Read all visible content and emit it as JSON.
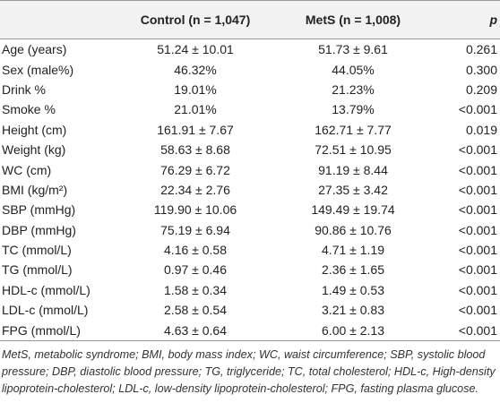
{
  "table": {
    "header": {
      "control": "Control (n = 1,047)",
      "mets": "MetS (n = 1,008)",
      "p": "p"
    },
    "rows": [
      [
        "Age (years)",
        "51.24 ± 10.01",
        "51.73 ± 9.61",
        "0.261"
      ],
      [
        "Sex (male%)",
        "46.32%",
        "44.05%",
        "0.300"
      ],
      [
        "Drink %",
        "19.01%",
        "21.23%",
        "0.209"
      ],
      [
        "Smoke %",
        "21.01%",
        "13.79%",
        "<0.001"
      ],
      [
        "Height (cm)",
        "161.91 ± 7.67",
        "162.71 ± 7.77",
        "0.019"
      ],
      [
        "Weight (kg)",
        "58.63 ± 8.68",
        "72.51 ± 10.95",
        "<0.001"
      ],
      [
        "WC (cm)",
        "76.29 ± 6.72",
        "91.19 ± 8.44",
        "<0.001"
      ],
      [
        "BMI (kg/m²)",
        "22.34 ± 2.76",
        "27.35 ± 3.42",
        "<0.001"
      ],
      [
        "SBP (mmHg)",
        "119.90 ± 10.06",
        "149.49 ± 19.74",
        "<0.001"
      ],
      [
        "DBP (mmHg)",
        "75.19 ± 6.94",
        "90.86 ± 10.76",
        "<0.001"
      ],
      [
        "TC (mmol/L)",
        "4.16 ± 0.58",
        "4.71 ± 1.19",
        "<0.001"
      ],
      [
        "TG (mmol/L)",
        "0.97 ± 0.46",
        "2.36 ± 1.65",
        "<0.001"
      ],
      [
        "HDL-c (mmol/L)",
        "1.58 ± 0.34",
        "1.49 ± 0.53",
        "<0.001"
      ],
      [
        "LDL-c (mmol/L)",
        "2.58 ± 0.54",
        "3.21 ± 0.83",
        "<0.001"
      ],
      [
        "FPG (mmol/L)",
        "4.63 ± 0.64",
        "6.00 ± 2.13",
        "<0.001"
      ]
    ],
    "footnote": "MetS, metabolic syndrome; BMI, body mass index; WC, waist circumference; SBP, systolic blood pressure; DBP, diastolic blood pressure; TG, triglyceride; TC, total cholesterol; HDL-c, High-density lipoprotein-cholesterol; LDL-c, low-density lipoprotein-cholesterol; FPG, fasting plasma glucose."
  }
}
